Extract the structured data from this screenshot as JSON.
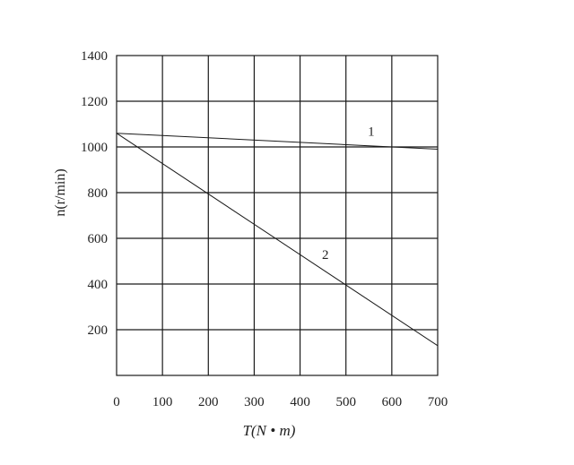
{
  "chart_data": {
    "type": "line",
    "xlabel": "T(N • m)",
    "ylabel": "n(r/min)",
    "xlim": [
      0,
      700
    ],
    "ylim": [
      0,
      1400
    ],
    "xticks": [
      "0",
      "100",
      "200",
      "300",
      "400",
      "500",
      "600",
      "700"
    ],
    "yticks": [
      "200",
      "400",
      "600",
      "800",
      "1000",
      "1200",
      "1400"
    ],
    "grid": true,
    "series": [
      {
        "name": "1",
        "x": [
          0,
          700
        ],
        "y": [
          1060,
          990
        ]
      },
      {
        "name": "2",
        "x": [
          0,
          700
        ],
        "y": [
          1060,
          130
        ]
      }
    ],
    "series_label_at": [
      {
        "x": 555,
        "y": 1050
      },
      {
        "x": 455,
        "y": 510
      }
    ]
  }
}
